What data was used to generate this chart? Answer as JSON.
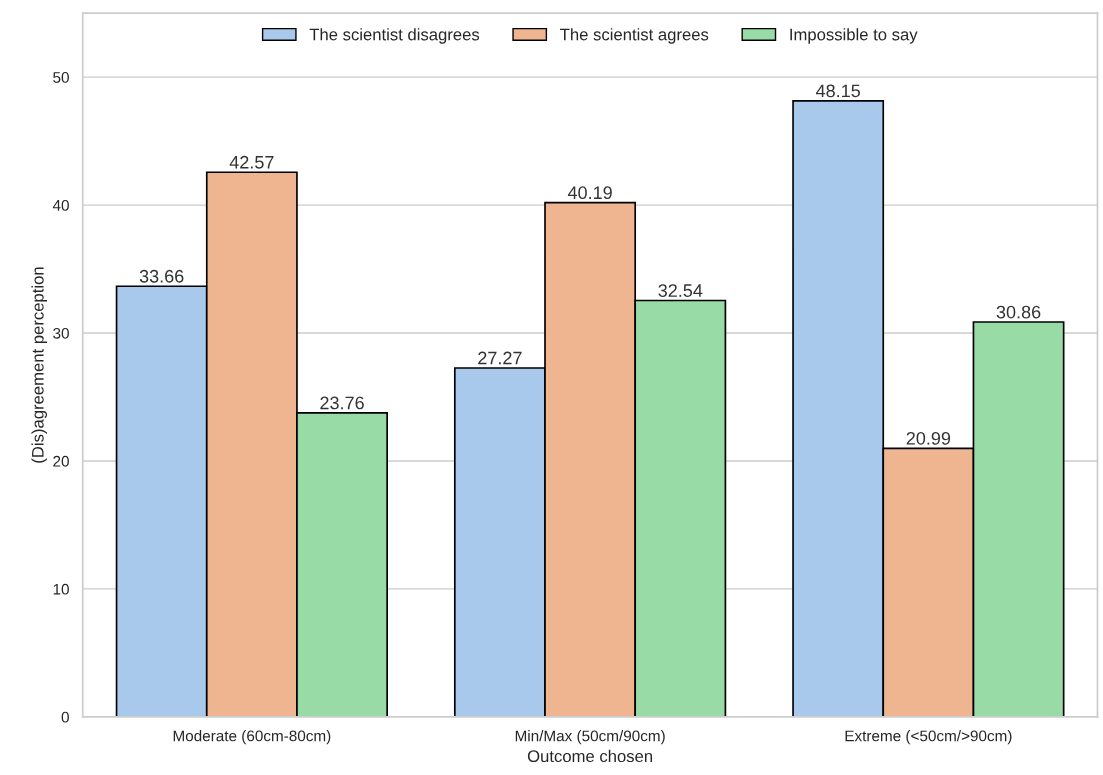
{
  "chart_data": {
    "type": "bar",
    "xlabel": "Outcome chosen",
    "ylabel": "(Dis)agreement perception",
    "categories": [
      "Moderate (60cm-80cm)",
      "Min/Max (50cm/90cm)",
      "Extreme (<50cm/>90cm)"
    ],
    "series": [
      {
        "name": "The scientist disagrees",
        "color": "#a8c8ec",
        "values": [
          33.66,
          27.27,
          48.15
        ]
      },
      {
        "name": "The scientist agrees",
        "color": "#efb590",
        "values": [
          42.57,
          40.19,
          20.99
        ]
      },
      {
        "name": "Impossible to say",
        "color": "#98dba6",
        "values": [
          23.76,
          32.54,
          30.86
        ]
      }
    ],
    "ylim": [
      0,
      55
    ],
    "yticks": [
      0,
      10,
      20,
      30,
      40,
      50
    ],
    "grid": "y",
    "legend": "top",
    "data_labels": true
  }
}
